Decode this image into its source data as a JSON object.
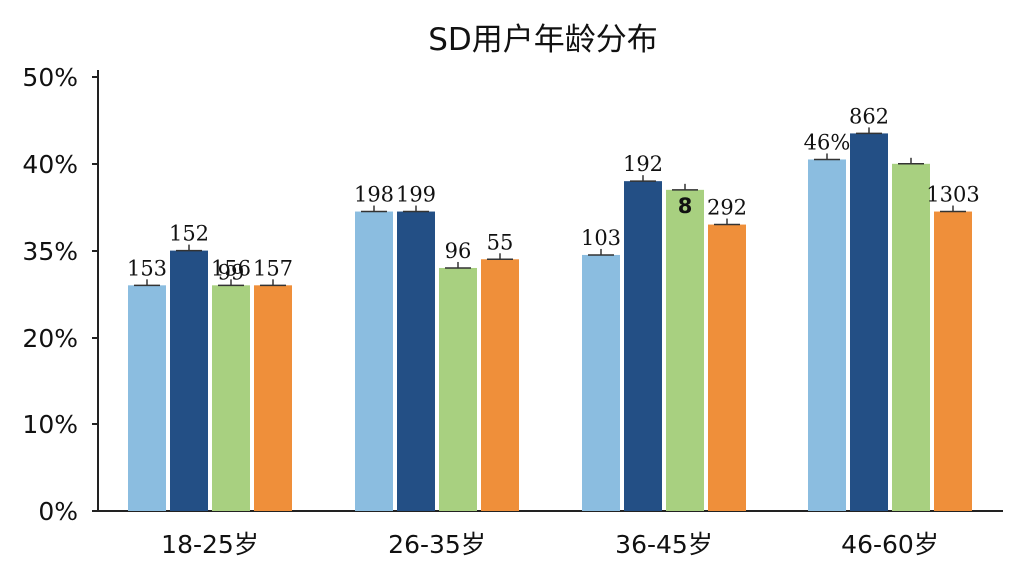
{
  "chart_data": {
    "type": "bar",
    "title": "SD用户年龄分布",
    "xlabel": "",
    "ylabel": "",
    "categories": [
      "18-25岁",
      "26-35岁",
      "36-45岁",
      "46-60岁"
    ],
    "y_tick_labels": [
      "0%",
      "10%",
      "20%",
      "35%",
      "40%",
      "50%"
    ],
    "ylim": [
      0,
      50
    ],
    "grid": false,
    "legend": "none",
    "colors": [
      "#8bbde0",
      "#234f85",
      "#a8d080",
      "#ef8f3a"
    ],
    "series": [
      {
        "values": [
          26,
          34.5,
          29.5,
          40.5
        ],
        "labels": [
          "153",
          "198",
          "103",
          "46%"
        ]
      },
      {
        "values": [
          30,
          34.5,
          38,
          43.5
        ],
        "labels": [
          "152",
          "199",
          "192",
          "862"
        ]
      },
      {
        "values": [
          26,
          28,
          37,
          40
        ],
        "labels": [
          "156",
          "96",
          "8",
          ""
        ]
      },
      {
        "values": [
          26,
          29,
          33,
          34.5
        ],
        "labels": [
          "157",
          "55",
          "292",
          "1303"
        ]
      }
    ],
    "extra_labels": [
      {
        "category": 0,
        "series": 2,
        "text": "99"
      }
    ]
  }
}
